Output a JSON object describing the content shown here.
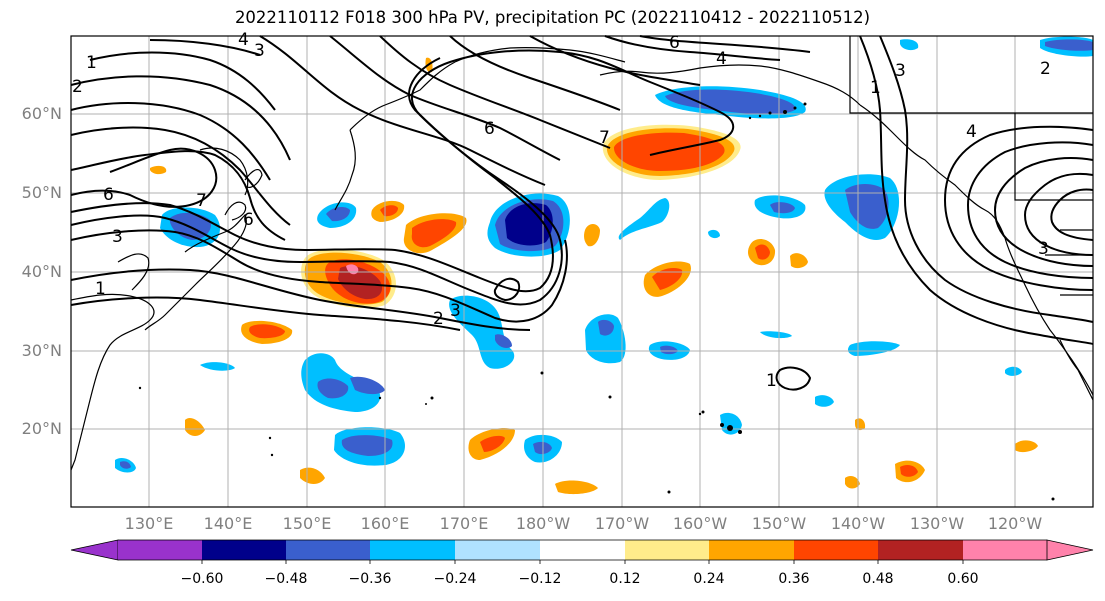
{
  "title": "2022110112 F018 300 hPa PV, precipitation PC (2022110412 - 2022110512)",
  "map": {
    "lat_labels": [
      "60°N",
      "50°N",
      "40°N",
      "30°N",
      "20°N"
    ],
    "lon_labels": [
      "130°E",
      "140°E",
      "150°E",
      "160°E",
      "170°E",
      "180°W",
      "170°W",
      "160°W",
      "150°W",
      "140°W",
      "130°W",
      "120°W"
    ],
    "contour_labels": [
      "1",
      "2",
      "3",
      "4",
      "6",
      "7",
      "6",
      "3",
      "1",
      "2",
      "3",
      "1",
      "6",
      "4",
      "7",
      "6",
      "4",
      "3",
      "1",
      "2",
      "3"
    ],
    "land_color": "#000000",
    "grid_color": "#b0b0b0"
  },
  "colorbar": {
    "ticks": [
      "−0.60",
      "−0.48",
      "−0.36",
      "−0.24",
      "−0.12",
      "0.12",
      "0.24",
      "0.36",
      "0.48",
      "0.60"
    ],
    "colors": [
      "#9932cc",
      "#00008b",
      "#3a5fcd",
      "#00bfff",
      "#b0e2ff",
      "#ffffff",
      "#ffec8b",
      "#ffa500",
      "#ff4500",
      "#b22222",
      "#ff82ab"
    ]
  }
}
